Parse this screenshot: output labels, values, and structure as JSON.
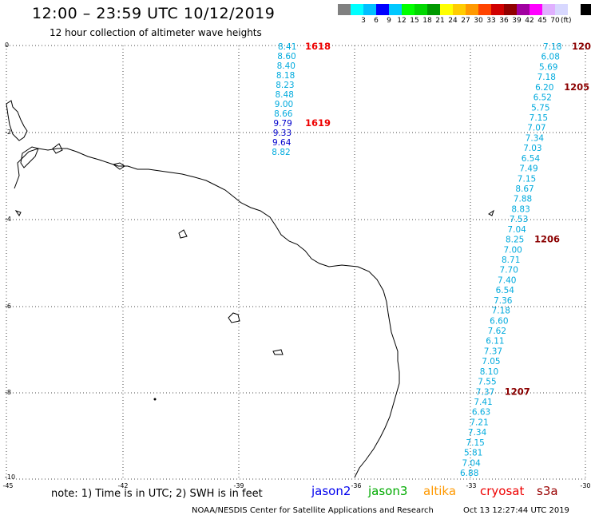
{
  "title": "12:00 – 23:59 UTC 10/12/2019",
  "subtitle": "12 hour collection of altimeter wave heights",
  "colorbar": {
    "colors": [
      "#808080",
      "#00ffff",
      "#00bfff",
      "#0000ff",
      "#00c8ff",
      "#00ff00",
      "#00d800",
      "#009900",
      "#ffff00",
      "#ffcc00",
      "#ff9900",
      "#ff4400",
      "#d00000",
      "#900000",
      "#a000a0",
      "#ff00ff",
      "#e0b0ff",
      "#d8d8ff",
      "#ffffff",
      "#000000"
    ],
    "labels": [
      "3",
      "6",
      "9",
      "12",
      "15",
      "18",
      "21",
      "24",
      "27",
      "30",
      "33",
      "36",
      "39",
      "42",
      "45",
      "70"
    ],
    "unit": "(ft)"
  },
  "axes": {
    "x_ticks": [
      "-45",
      "-42",
      "-39",
      "-36",
      "-33",
      "-30"
    ],
    "y_ticks": [
      "0",
      "-2",
      "-4",
      "-6",
      "-8",
      "-10"
    ],
    "lon_range": [
      -45,
      -30
    ],
    "lat_range": [
      0,
      -10
    ]
  },
  "track1": {
    "color": "#00aadd",
    "values": [
      "8.41",
      "8.60",
      "8.40",
      "8.18",
      "8.23",
      "8.48",
      "9.00",
      "8.66",
      "9.79",
      "9.33",
      "9.64",
      "8.82"
    ],
    "value_colors": [
      "#00aadd",
      "#00aadd",
      "#00aadd",
      "#00aadd",
      "#00aadd",
      "#00aadd",
      "#00aadd",
      "#00aadd",
      "#0000cc",
      "#0000cc",
      "#0000cc",
      "#00aadd"
    ],
    "times": [
      {
        "label": "1618",
        "index": 0
      },
      {
        "label": "1619",
        "index": 8
      }
    ],
    "time_color": "#ee0000"
  },
  "track2": {
    "values": [
      "7.18",
      "6.08",
      "5.69",
      "7.18",
      "6.20",
      "6.52",
      "5.75",
      "7.15",
      "7.07",
      "7.34",
      "7.03",
      "6.54",
      "7.49",
      "7.15",
      "8.67",
      "7.88",
      "8.83",
      "7.53",
      "7.04",
      "8.25",
      "7.00",
      "8.71",
      "7.70",
      "7.40",
      "6.54",
      "7.36",
      "7.18",
      "6.60",
      "7.62",
      "6.11",
      "7.37",
      "7.05",
      "8.10",
      "7.55",
      "7.37",
      "7.41",
      "6.63",
      "7.21",
      "7.34",
      "7.15",
      "5.81",
      "7.04",
      "6.88"
    ],
    "times": [
      {
        "label": "120",
        "index": 0
      },
      {
        "label": "1205",
        "index": 4
      },
      {
        "label": "1206",
        "index": 19
      },
      {
        "label": "1207",
        "index": 34
      }
    ],
    "time_color": "#8b0000"
  },
  "note": "note:  1) Time is in UTC;  2) SWH is in feet",
  "satellites": [
    {
      "name": "jason2",
      "color": "#0000ee"
    },
    {
      "name": "jason3",
      "color": "#00aa00"
    },
    {
      "name": "altika",
      "color": "#ff9900"
    },
    {
      "name": "cryosat",
      "color": "#ee0000"
    },
    {
      "name": "s3a",
      "color": "#990000"
    }
  ],
  "credit": "NOAA/NESDIS Center for Satellite Applications and Research",
  "timestamp": "Oct 13 12:27:44 UTC 2019"
}
